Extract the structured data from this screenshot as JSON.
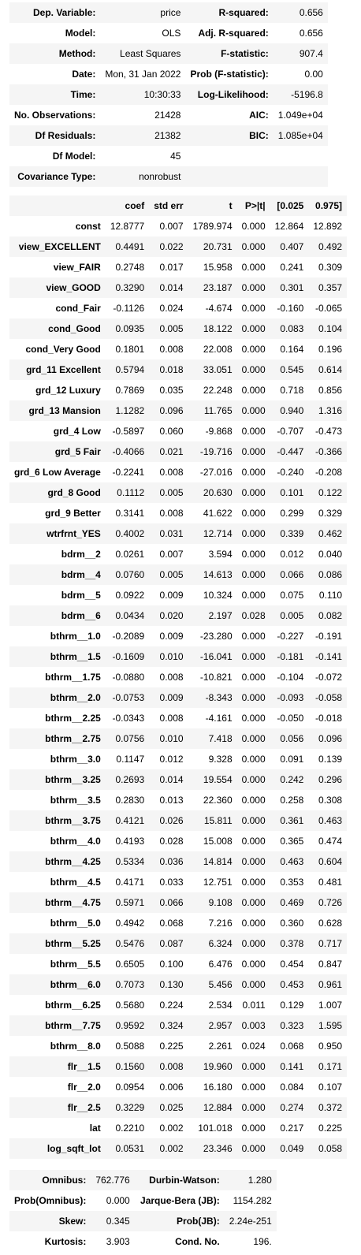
{
  "summary": [
    [
      "Dep. Variable:",
      "price",
      "R-squared:",
      "0.656"
    ],
    [
      "Model:",
      "OLS",
      "Adj. R-squared:",
      "0.656"
    ],
    [
      "Method:",
      "Least Squares",
      "F-statistic:",
      "907.4"
    ],
    [
      "Date:",
      "Mon, 31 Jan 2022",
      "Prob (F-statistic):",
      "0.00"
    ],
    [
      "Time:",
      "10:30:33",
      "Log-Likelihood:",
      "-5196.8"
    ],
    [
      "No. Observations:",
      "21428",
      "AIC:",
      "1.049e+04"
    ],
    [
      "Df Residuals:",
      "21382",
      "BIC:",
      "1.085e+04"
    ],
    [
      "Df Model:",
      "45",
      "",
      ""
    ],
    [
      "Covariance Type:",
      "nonrobust",
      "",
      ""
    ]
  ],
  "coef_headers": [
    "",
    "coef",
    "std err",
    "t",
    "P>|t|",
    "[0.025",
    "0.975]"
  ],
  "coef_rows": [
    [
      "const",
      "12.8777",
      "0.007",
      "1789.974",
      "0.000",
      "12.864",
      "12.892"
    ],
    [
      "view_EXCELLENT",
      "0.4491",
      "0.022",
      "20.731",
      "0.000",
      "0.407",
      "0.492"
    ],
    [
      "view_FAIR",
      "0.2748",
      "0.017",
      "15.958",
      "0.000",
      "0.241",
      "0.309"
    ],
    [
      "view_GOOD",
      "0.3290",
      "0.014",
      "23.187",
      "0.000",
      "0.301",
      "0.357"
    ],
    [
      "cond_Fair",
      "-0.1126",
      "0.024",
      "-4.674",
      "0.000",
      "-0.160",
      "-0.065"
    ],
    [
      "cond_Good",
      "0.0935",
      "0.005",
      "18.122",
      "0.000",
      "0.083",
      "0.104"
    ],
    [
      "cond_Very Good",
      "0.1801",
      "0.008",
      "22.008",
      "0.000",
      "0.164",
      "0.196"
    ],
    [
      "grd_11 Excellent",
      "0.5794",
      "0.018",
      "33.051",
      "0.000",
      "0.545",
      "0.614"
    ],
    [
      "grd_12 Luxury",
      "0.7869",
      "0.035",
      "22.248",
      "0.000",
      "0.718",
      "0.856"
    ],
    [
      "grd_13 Mansion",
      "1.1282",
      "0.096",
      "11.765",
      "0.000",
      "0.940",
      "1.316"
    ],
    [
      "grd_4 Low",
      "-0.5897",
      "0.060",
      "-9.868",
      "0.000",
      "-0.707",
      "-0.473"
    ],
    [
      "grd_5 Fair",
      "-0.4066",
      "0.021",
      "-19.716",
      "0.000",
      "-0.447",
      "-0.366"
    ],
    [
      "grd_6 Low Average",
      "-0.2241",
      "0.008",
      "-27.016",
      "0.000",
      "-0.240",
      "-0.208"
    ],
    [
      "grd_8 Good",
      "0.1112",
      "0.005",
      "20.630",
      "0.000",
      "0.101",
      "0.122"
    ],
    [
      "grd_9 Better",
      "0.3141",
      "0.008",
      "41.622",
      "0.000",
      "0.299",
      "0.329"
    ],
    [
      "wtrfrnt_YES",
      "0.4002",
      "0.031",
      "12.714",
      "0.000",
      "0.339",
      "0.462"
    ],
    [
      "bdrm__2",
      "0.0261",
      "0.007",
      "3.594",
      "0.000",
      "0.012",
      "0.040"
    ],
    [
      "bdrm__4",
      "0.0760",
      "0.005",
      "14.613",
      "0.000",
      "0.066",
      "0.086"
    ],
    [
      "bdrm__5",
      "0.0922",
      "0.009",
      "10.324",
      "0.000",
      "0.075",
      "0.110"
    ],
    [
      "bdrm__6",
      "0.0434",
      "0.020",
      "2.197",
      "0.028",
      "0.005",
      "0.082"
    ],
    [
      "bthrm__1.0",
      "-0.2089",
      "0.009",
      "-23.280",
      "0.000",
      "-0.227",
      "-0.191"
    ],
    [
      "bthrm__1.5",
      "-0.1609",
      "0.010",
      "-16.041",
      "0.000",
      "-0.181",
      "-0.141"
    ],
    [
      "bthrm__1.75",
      "-0.0880",
      "0.008",
      "-10.821",
      "0.000",
      "-0.104",
      "-0.072"
    ],
    [
      "bthrm__2.0",
      "-0.0753",
      "0.009",
      "-8.343",
      "0.000",
      "-0.093",
      "-0.058"
    ],
    [
      "bthrm__2.25",
      "-0.0343",
      "0.008",
      "-4.161",
      "0.000",
      "-0.050",
      "-0.018"
    ],
    [
      "bthrm__2.75",
      "0.0756",
      "0.010",
      "7.418",
      "0.000",
      "0.056",
      "0.096"
    ],
    [
      "bthrm__3.0",
      "0.1147",
      "0.012",
      "9.328",
      "0.000",
      "0.091",
      "0.139"
    ],
    [
      "bthrm__3.25",
      "0.2693",
      "0.014",
      "19.554",
      "0.000",
      "0.242",
      "0.296"
    ],
    [
      "bthrm__3.5",
      "0.2830",
      "0.013",
      "22.360",
      "0.000",
      "0.258",
      "0.308"
    ],
    [
      "bthrm__3.75",
      "0.4121",
      "0.026",
      "15.811",
      "0.000",
      "0.361",
      "0.463"
    ],
    [
      "bthrm__4.0",
      "0.4193",
      "0.028",
      "15.008",
      "0.000",
      "0.365",
      "0.474"
    ],
    [
      "bthrm__4.25",
      "0.5334",
      "0.036",
      "14.814",
      "0.000",
      "0.463",
      "0.604"
    ],
    [
      "bthrm__4.5",
      "0.4171",
      "0.033",
      "12.751",
      "0.000",
      "0.353",
      "0.481"
    ],
    [
      "bthrm__4.75",
      "0.5971",
      "0.066",
      "9.108",
      "0.000",
      "0.469",
      "0.726"
    ],
    [
      "bthrm__5.0",
      "0.4942",
      "0.068",
      "7.216",
      "0.000",
      "0.360",
      "0.628"
    ],
    [
      "bthrm__5.25",
      "0.5476",
      "0.087",
      "6.324",
      "0.000",
      "0.378",
      "0.717"
    ],
    [
      "bthrm__5.5",
      "0.6505",
      "0.100",
      "6.476",
      "0.000",
      "0.454",
      "0.847"
    ],
    [
      "bthrm__6.0",
      "0.7073",
      "0.130",
      "5.456",
      "0.000",
      "0.453",
      "0.961"
    ],
    [
      "bthrm__6.25",
      "0.5680",
      "0.224",
      "2.534",
      "0.011",
      "0.129",
      "1.007"
    ],
    [
      "bthrm__7.75",
      "0.9592",
      "0.324",
      "2.957",
      "0.003",
      "0.323",
      "1.595"
    ],
    [
      "bthrm__8.0",
      "0.5088",
      "0.225",
      "2.261",
      "0.024",
      "0.068",
      "0.950"
    ],
    [
      "flr__1.5",
      "0.1560",
      "0.008",
      "19.960",
      "0.000",
      "0.141",
      "0.171"
    ],
    [
      "flr__2.0",
      "0.0954",
      "0.006",
      "16.180",
      "0.000",
      "0.084",
      "0.107"
    ],
    [
      "flr__2.5",
      "0.3229",
      "0.025",
      "12.884",
      "0.000",
      "0.274",
      "0.372"
    ],
    [
      "lat",
      "0.2210",
      "0.002",
      "101.018",
      "0.000",
      "0.217",
      "0.225"
    ],
    [
      "log_sqft_lot",
      "0.0531",
      "0.002",
      "23.346",
      "0.000",
      "0.049",
      "0.058"
    ]
  ],
  "diagnostics": [
    [
      "Omnibus:",
      "762.776",
      "Durbin-Watson:",
      "1.280"
    ],
    [
      "Prob(Omnibus):",
      "0.000",
      "Jarque-Bera (JB):",
      "1154.282"
    ],
    [
      "Skew:",
      "0.345",
      "Prob(JB):",
      "2.24e-251"
    ],
    [
      "Kurtosis:",
      "3.903",
      "Cond. No.",
      "196."
    ]
  ]
}
